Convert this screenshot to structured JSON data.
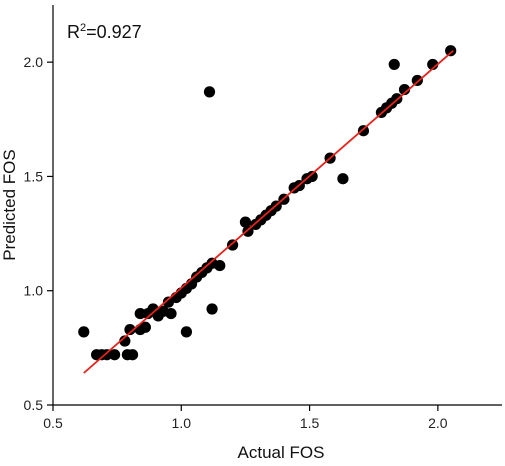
{
  "chart_data": {
    "type": "scatter",
    "title": "",
    "xlabel": "Actual FOS",
    "ylabel": "Predicted FOS",
    "xlim": [
      0.5,
      2.25
    ],
    "ylim": [
      0.5,
      2.25
    ],
    "xticks": [
      "0.5",
      "1.0",
      "1.5",
      "2.0"
    ],
    "yticks": [
      "0.5",
      "1.0",
      "1.5",
      "2.0"
    ],
    "annotation": {
      "prefix": "R",
      "sup": "2",
      "value": "=0.927"
    },
    "grid": false,
    "legend": "none",
    "colors": {
      "points": "#000000",
      "fit_line": "#e8201a",
      "axis": "#000000"
    },
    "fit_line": {
      "x": [
        0.62,
        2.06
      ],
      "y": [
        0.64,
        2.05
      ]
    },
    "points": [
      {
        "x": 0.62,
        "y": 0.82
      },
      {
        "x": 0.67,
        "y": 0.72
      },
      {
        "x": 0.69,
        "y": 0.72
      },
      {
        "x": 0.71,
        "y": 0.72
      },
      {
        "x": 0.74,
        "y": 0.72
      },
      {
        "x": 0.78,
        "y": 0.78
      },
      {
        "x": 0.79,
        "y": 0.72
      },
      {
        "x": 0.81,
        "y": 0.72
      },
      {
        "x": 0.8,
        "y": 0.83
      },
      {
        "x": 0.84,
        "y": 0.9
      },
      {
        "x": 0.84,
        "y": 0.83
      },
      {
        "x": 0.86,
        "y": 0.84
      },
      {
        "x": 0.87,
        "y": 0.9
      },
      {
        "x": 0.89,
        "y": 0.92
      },
      {
        "x": 0.91,
        "y": 0.89
      },
      {
        "x": 0.93,
        "y": 0.91
      },
      {
        "x": 0.95,
        "y": 0.95
      },
      {
        "x": 0.96,
        "y": 0.9
      },
      {
        "x": 0.98,
        "y": 0.97
      },
      {
        "x": 1.0,
        "y": 0.99
      },
      {
        "x": 1.02,
        "y": 0.82
      },
      {
        "x": 1.02,
        "y": 1.01
      },
      {
        "x": 1.04,
        "y": 1.03
      },
      {
        "x": 1.06,
        "y": 1.06
      },
      {
        "x": 1.08,
        "y": 1.08
      },
      {
        "x": 1.1,
        "y": 1.1
      },
      {
        "x": 1.11,
        "y": 1.87
      },
      {
        "x": 1.12,
        "y": 1.12
      },
      {
        "x": 1.12,
        "y": 0.92
      },
      {
        "x": 1.15,
        "y": 1.11
      },
      {
        "x": 1.2,
        "y": 1.2
      },
      {
        "x": 1.25,
        "y": 1.3
      },
      {
        "x": 1.26,
        "y": 1.26
      },
      {
        "x": 1.29,
        "y": 1.29
      },
      {
        "x": 1.31,
        "y": 1.31
      },
      {
        "x": 1.33,
        "y": 1.33
      },
      {
        "x": 1.35,
        "y": 1.35
      },
      {
        "x": 1.37,
        "y": 1.37
      },
      {
        "x": 1.4,
        "y": 1.4
      },
      {
        "x": 1.44,
        "y": 1.45
      },
      {
        "x": 1.46,
        "y": 1.46
      },
      {
        "x": 1.49,
        "y": 1.49
      },
      {
        "x": 1.51,
        "y": 1.5
      },
      {
        "x": 1.58,
        "y": 1.58
      },
      {
        "x": 1.63,
        "y": 1.49
      },
      {
        "x": 1.71,
        "y": 1.7
      },
      {
        "x": 1.78,
        "y": 1.78
      },
      {
        "x": 1.8,
        "y": 1.8
      },
      {
        "x": 1.82,
        "y": 1.82
      },
      {
        "x": 1.83,
        "y": 1.99
      },
      {
        "x": 1.84,
        "y": 1.84
      },
      {
        "x": 1.87,
        "y": 1.88
      },
      {
        "x": 1.92,
        "y": 1.92
      },
      {
        "x": 1.98,
        "y": 1.99
      },
      {
        "x": 2.05,
        "y": 2.05
      }
    ]
  }
}
